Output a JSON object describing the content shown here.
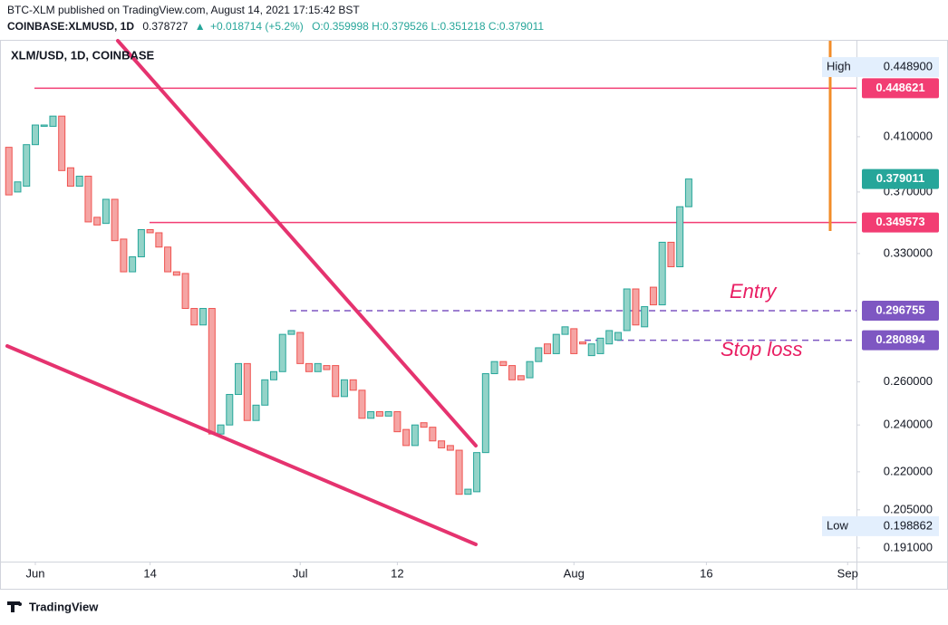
{
  "header": {
    "publisher_line": "BTC-XLM published on TradingView.com, August 14, 2021 17:15:42 BST",
    "symbol": "COINBASE:XLMUSD, 1D",
    "last": "0.378727",
    "change": "+0.018714 (+5.2%)",
    "ohlc": "O:0.359998 H:0.379526 L:0.351218 C:0.379011"
  },
  "brand": "TradingView",
  "chart_data": {
    "type": "candlestick",
    "legend": "XLM/USD, 1D, COINBASE",
    "x": [
      "2021-05-29",
      "2021-05-30",
      "2021-05-31",
      "2021-06-01",
      "2021-06-02",
      "2021-06-03",
      "2021-06-04",
      "2021-06-05",
      "2021-06-06",
      "2021-06-07",
      "2021-06-08",
      "2021-06-09",
      "2021-06-10",
      "2021-06-11",
      "2021-06-12",
      "2021-06-13",
      "2021-06-14",
      "2021-06-15",
      "2021-06-16",
      "2021-06-17",
      "2021-06-18",
      "2021-06-19",
      "2021-06-20",
      "2021-06-21",
      "2021-06-22",
      "2021-06-23",
      "2021-06-24",
      "2021-06-25",
      "2021-06-26",
      "2021-06-27",
      "2021-06-28",
      "2021-06-29",
      "2021-06-30",
      "2021-07-01",
      "2021-07-02",
      "2021-07-03",
      "2021-07-04",
      "2021-07-05",
      "2021-07-06",
      "2021-07-07",
      "2021-07-08",
      "2021-07-09",
      "2021-07-10",
      "2021-07-11",
      "2021-07-12",
      "2021-07-13",
      "2021-07-14",
      "2021-07-15",
      "2021-07-16",
      "2021-07-17",
      "2021-07-18",
      "2021-07-19",
      "2021-07-20",
      "2021-07-21",
      "2021-07-22",
      "2021-07-23",
      "2021-07-24",
      "2021-07-25",
      "2021-07-26",
      "2021-07-27",
      "2021-07-28",
      "2021-07-29",
      "2021-07-30",
      "2021-07-31",
      "2021-08-01",
      "2021-08-02",
      "2021-08-03",
      "2021-08-04",
      "2021-08-05",
      "2021-08-06",
      "2021-08-07",
      "2021-08-08",
      "2021-08-09",
      "2021-08-10",
      "2021-08-11",
      "2021-08-12",
      "2021-08-13",
      "2021-08-14"
    ],
    "open": [
      0.402,
      0.37,
      0.374,
      0.404,
      0.418,
      0.418,
      0.426,
      0.387,
      0.374,
      0.381,
      0.353,
      0.349,
      0.365,
      0.339,
      0.319,
      0.328,
      0.345,
      0.343,
      0.334,
      0.319,
      0.318,
      0.298,
      0.289,
      0.298,
      0.236,
      0.24,
      0.254,
      0.269,
      0.242,
      0.249,
      0.261,
      0.265,
      0.284,
      0.285,
      0.269,
      0.265,
      0.268,
      0.268,
      0.253,
      0.261,
      0.256,
      0.243,
      0.246,
      0.244,
      0.246,
      0.238,
      0.231,
      0.241,
      0.239,
      0.233,
      0.231,
      0.229,
      0.211,
      0.212,
      0.228,
      0.264,
      0.27,
      0.268,
      0.263,
      0.262,
      0.27,
      0.279,
      0.274,
      0.284,
      0.287,
      0.28,
      0.273,
      0.274,
      0.279,
      0.281,
      0.286,
      0.309,
      0.288,
      0.31,
      0.3,
      0.337,
      0.322,
      0.359998
    ],
    "high": {
      "label": "High",
      "value": 0.4489,
      "value_label": "0.448900"
    },
    "low": {
      "label": "Low",
      "value": 0.198862
    },
    "close": [
      0.368,
      0.377,
      0.404,
      0.419,
      0.419,
      0.426,
      0.385,
      0.374,
      0.381,
      0.35,
      0.348,
      0.365,
      0.338,
      0.319,
      0.328,
      0.345,
      0.343,
      0.334,
      0.319,
      0.317,
      0.298,
      0.289,
      0.298,
      0.236,
      0.24,
      0.254,
      0.269,
      0.242,
      0.249,
      0.261,
      0.265,
      0.284,
      0.286,
      0.269,
      0.265,
      0.269,
      0.266,
      0.253,
      0.261,
      0.256,
      0.243,
      0.246,
      0.244,
      0.246,
      0.237,
      0.231,
      0.24,
      0.239,
      0.233,
      0.23,
      0.229,
      0.211,
      0.213,
      0.228,
      0.264,
      0.27,
      0.268,
      0.261,
      0.261,
      0.27,
      0.277,
      0.274,
      0.284,
      0.288,
      0.274,
      0.279,
      0.279,
      0.282,
      0.286,
      0.285,
      0.309,
      0.289,
      0.299,
      0.3,
      0.337,
      0.322,
      0.36,
      0.379011
    ],
    "up_color": "#26a69a",
    "up_fill": "#93d3c8",
    "down_color": "#ef5350",
    "down_fill": "#f5a5a4",
    "log_scale": true,
    "ylim": [
      0.1862,
      0.49
    ],
    "yticks": [
      {
        "value": 0.191,
        "label": "0.191000"
      },
      {
        "value": 0.205,
        "label": "0.205000"
      },
      {
        "value": 0.22,
        "label": "0.220000"
      },
      {
        "value": 0.24,
        "label": "0.240000"
      },
      {
        "value": 0.26,
        "label": "0.260000"
      },
      {
        "value": 0.33,
        "label": "0.330000"
      },
      {
        "value": 0.37,
        "label": "0.370000"
      },
      {
        "value": 0.41,
        "label": "0.410000"
      }
    ],
    "xlim": [
      "2021-05-28",
      "2021-09-02"
    ],
    "xticks": [
      {
        "value": "2021-06-01",
        "label": "Jun"
      },
      {
        "value": "2021-06-14",
        "label": "14"
      },
      {
        "value": "2021-07-01",
        "label": "Jul"
      },
      {
        "value": "2021-07-12",
        "label": "12"
      },
      {
        "value": "2021-08-01",
        "label": "Aug"
      },
      {
        "value": "2021-08-16",
        "label": "16"
      },
      {
        "value": "2021-09-01",
        "label": "Sep"
      }
    ],
    "price_lines": [
      {
        "value": 0.448621,
        "color": "#f23d73",
        "dashed": false
      },
      {
        "value": 0.349573,
        "color": "#f23d73",
        "dashed": false
      },
      {
        "value": 0.296755,
        "color": "#7e57c2",
        "dashed": true
      },
      {
        "value": 0.280894,
        "color": "#7e57c2",
        "dashed": true
      }
    ],
    "last_price": {
      "value": 0.379011,
      "color": "#26a69a"
    },
    "annotations": [
      {
        "text": "Entry"
      },
      {
        "text": "Stop loss"
      }
    ]
  }
}
